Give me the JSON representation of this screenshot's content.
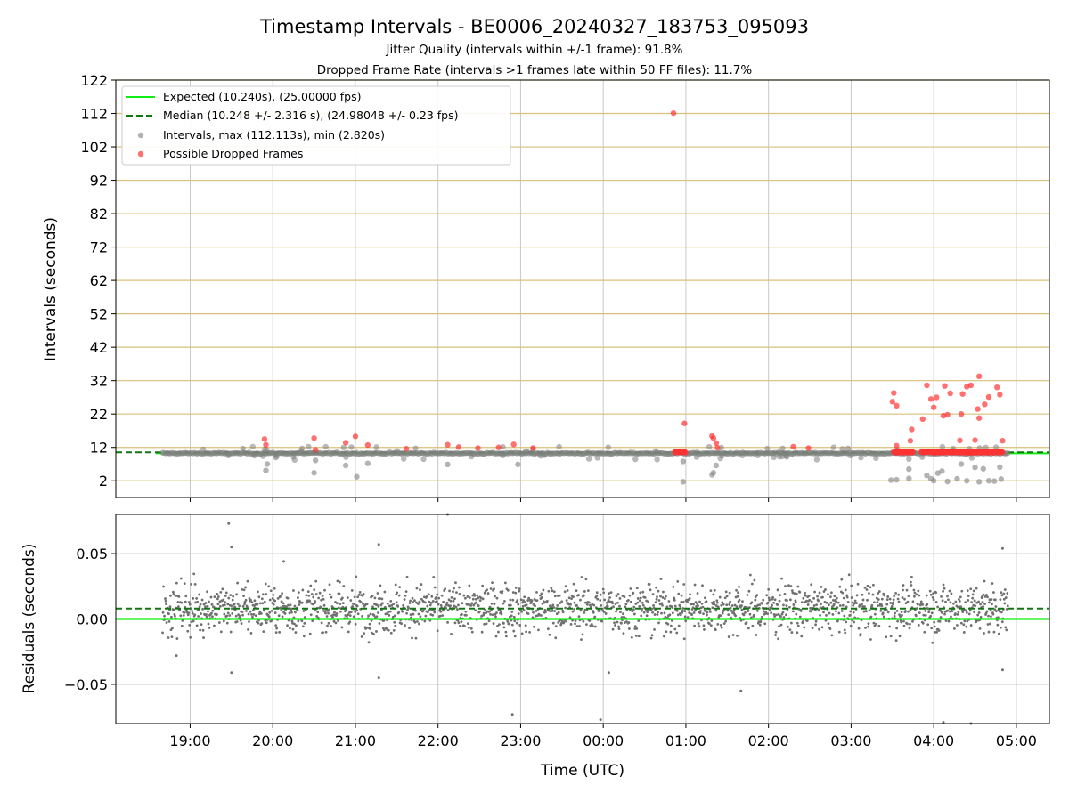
{
  "figure": {
    "title": "Timestamp Intervals - BE0006_20240327_183753_095093",
    "subtitle_1": "Jitter Quality (intervals within +/-1 frame): 91.8%",
    "subtitle_2": "Dropped Frame Rate (intervals >1 frames late within 50 FF files): 11.7%"
  },
  "colors": {
    "expected": "#11ee11",
    "median": "#117711",
    "intervals": "#808080",
    "dropped": "#ff3333",
    "hgrid_top": "#d8c07a",
    "grid": "#c8c8c8"
  },
  "chart_data": [
    {
      "type": "scatter",
      "ylabel": "Intervals (seconds)",
      "ylim": [
        -3,
        122
      ],
      "yticks": [
        "2",
        "12",
        "22",
        "32",
        "42",
        "52",
        "62",
        "72",
        "82",
        "92",
        "102",
        "112",
        "122"
      ],
      "grid": "on",
      "legend_placement": "top-left",
      "legend": {
        "expected": "Expected (10.240s), (25.00000 fps)",
        "median": "Median (10.248 +/- 2.316 s), (24.98048 +/- 0.23 fps)",
        "intervals": "Intervals, max (112.113s), min (2.820s)",
        "dropped": "Possible Dropped Frames"
      },
      "expected_value": 10.24,
      "median_value": 10.248,
      "dropped_points": [
        {
          "x": "19:54",
          "y": 14.5
        },
        {
          "x": "19:55",
          "y": 12.8
        },
        {
          "x": "20:30",
          "y": 14.8
        },
        {
          "x": "20:31",
          "y": 11.3
        },
        {
          "x": "20:53",
          "y": 13.4
        },
        {
          "x": "21:00",
          "y": 15.3
        },
        {
          "x": "21:09",
          "y": 12.7
        },
        {
          "x": "21:37",
          "y": 11.6
        },
        {
          "x": "22:07",
          "y": 12.8
        },
        {
          "x": "22:15",
          "y": 12.1
        },
        {
          "x": "22:29",
          "y": 11.8
        },
        {
          "x": "22:44",
          "y": 12.0
        },
        {
          "x": "22:55",
          "y": 12.9
        },
        {
          "x": "23:09",
          "y": 11.8
        },
        {
          "x": "00:51",
          "y": 112.1
        },
        {
          "x": "00:59",
          "y": 19.2
        },
        {
          "x": "01:19",
          "y": 15.4
        },
        {
          "x": "01:20",
          "y": 14.8
        },
        {
          "x": "01:22",
          "y": 13.3
        },
        {
          "x": "01:23",
          "y": 11.9
        },
        {
          "x": "02:18",
          "y": 12.2
        },
        {
          "x": "02:29",
          "y": 11.8
        },
        {
          "x": "03:30",
          "y": 25.7
        },
        {
          "x": "03:31",
          "y": 28.3
        },
        {
          "x": "03:33",
          "y": 24.5
        },
        {
          "x": "03:33",
          "y": 12.5
        },
        {
          "x": "03:44",
          "y": 17.4
        },
        {
          "x": "03:43",
          "y": 14.0
        },
        {
          "x": "03:52",
          "y": 20.5
        },
        {
          "x": "03:55",
          "y": 30.6
        },
        {
          "x": "03:58",
          "y": 26.5
        },
        {
          "x": "04:00",
          "y": 24.0
        },
        {
          "x": "04:02",
          "y": 27.0
        },
        {
          "x": "04:07",
          "y": 21.5
        },
        {
          "x": "04:08",
          "y": 30.4
        },
        {
          "x": "04:10",
          "y": 21.8
        },
        {
          "x": "04:12",
          "y": 28.2
        },
        {
          "x": "04:19",
          "y": 14.1
        },
        {
          "x": "04:20",
          "y": 22.0
        },
        {
          "x": "04:21",
          "y": 28.0
        },
        {
          "x": "04:24",
          "y": 30.2
        },
        {
          "x": "04:27",
          "y": 30.6
        },
        {
          "x": "04:30",
          "y": 14.2
        },
        {
          "x": "04:32",
          "y": 23.5
        },
        {
          "x": "04:33",
          "y": 33.3
        },
        {
          "x": "04:33",
          "y": 20.8
        },
        {
          "x": "04:37",
          "y": 24.9
        },
        {
          "x": "04:40",
          "y": 27.1
        },
        {
          "x": "04:46",
          "y": 30.0
        },
        {
          "x": "04:48",
          "y": 27.8
        },
        {
          "x": "04:50",
          "y": 14.0
        }
      ],
      "dropped_clusters": [
        {
          "x_start": "00:52",
          "x_end": "01:00",
          "y": 10.6
        },
        {
          "x_start": "03:31",
          "x_end": "03:45",
          "y": 10.6
        },
        {
          "x_start": "03:51",
          "x_end": "04:50",
          "y": 10.6
        }
      ],
      "low_points": [
        {
          "x": "19:55",
          "y": 5.1
        },
        {
          "x": "19:56",
          "y": 7.0
        },
        {
          "x": "20:30",
          "y": 4.4
        },
        {
          "x": "20:31",
          "y": 8.1
        },
        {
          "x": "20:53",
          "y": 6.6
        },
        {
          "x": "21:01",
          "y": 3.2
        },
        {
          "x": "21:09",
          "y": 7.2
        },
        {
          "x": "22:07",
          "y": 6.9
        },
        {
          "x": "22:58",
          "y": 6.9
        },
        {
          "x": "00:58",
          "y": 1.7
        },
        {
          "x": "00:58",
          "y": 7.8
        },
        {
          "x": "01:19",
          "y": 3.8
        },
        {
          "x": "01:20",
          "y": 4.4
        },
        {
          "x": "01:22",
          "y": 6.6
        },
        {
          "x": "03:29",
          "y": 2.2
        },
        {
          "x": "03:33",
          "y": 2.3
        },
        {
          "x": "03:42",
          "y": 2.7
        },
        {
          "x": "03:42",
          "y": 5.5
        },
        {
          "x": "03:55",
          "y": 3.6
        },
        {
          "x": "03:58",
          "y": 2.6
        },
        {
          "x": "04:00",
          "y": 2.0
        },
        {
          "x": "04:03",
          "y": 4.3
        },
        {
          "x": "04:06",
          "y": 4.9
        },
        {
          "x": "04:10",
          "y": 1.8
        },
        {
          "x": "04:17",
          "y": 2.6
        },
        {
          "x": "04:20",
          "y": 7.0
        },
        {
          "x": "04:24",
          "y": 2.0
        },
        {
          "x": "04:30",
          "y": 6.0
        },
        {
          "x": "04:33",
          "y": 1.7
        },
        {
          "x": "04:36",
          "y": 5.6
        },
        {
          "x": "04:40",
          "y": 2.0
        },
        {
          "x": "04:44",
          "y": 1.9
        },
        {
          "x": "04:48",
          "y": 6.1
        },
        {
          "x": "04:49",
          "y": 2.5
        }
      ],
      "series_note": "Intervals ~10.2 s from 18:40 to 04:54 with sparse low/high excursions"
    },
    {
      "type": "scatter",
      "xlabel": "Time (UTC)",
      "ylabel": "Residuals (seconds)",
      "ylim": [
        -0.08,
        0.08
      ],
      "yticks": [
        "0.05",
        "0.00",
        "−0.05"
      ],
      "xticks": [
        "19:00",
        "20:00",
        "21:00",
        "22:00",
        "23:00",
        "00:00",
        "01:00",
        "02:00",
        "03:00",
        "04:00",
        "05:00"
      ],
      "xlim": [
        "18:06",
        "05:24"
      ],
      "data_range": [
        "18:40",
        "04:54"
      ],
      "expected_value": 0.0,
      "median_value": 0.008,
      "residual_center": 0.008,
      "residual_spread_sd": 0.0095,
      "outliers": [
        {
          "x": "19:28",
          "y": 0.073
        },
        {
          "x": "19:30",
          "y": 0.055
        },
        {
          "x": "19:30",
          "y": -0.041
        },
        {
          "x": "21:17",
          "y": 0.057
        },
        {
          "x": "21:17",
          "y": -0.045
        },
        {
          "x": "22:07",
          "y": 0.08
        },
        {
          "x": "22:54",
          "y": -0.073
        },
        {
          "x": "23:58",
          "y": -0.077
        },
        {
          "x": "00:04",
          "y": -0.041
        },
        {
          "x": "01:40",
          "y": -0.055
        },
        {
          "x": "04:07",
          "y": -0.079
        },
        {
          "x": "04:27",
          "y": -0.08
        },
        {
          "x": "04:50",
          "y": 0.054
        },
        {
          "x": "04:50",
          "y": -0.039
        },
        {
          "x": "18:50",
          "y": -0.028
        },
        {
          "x": "20:08",
          "y": 0.044
        }
      ]
    }
  ]
}
